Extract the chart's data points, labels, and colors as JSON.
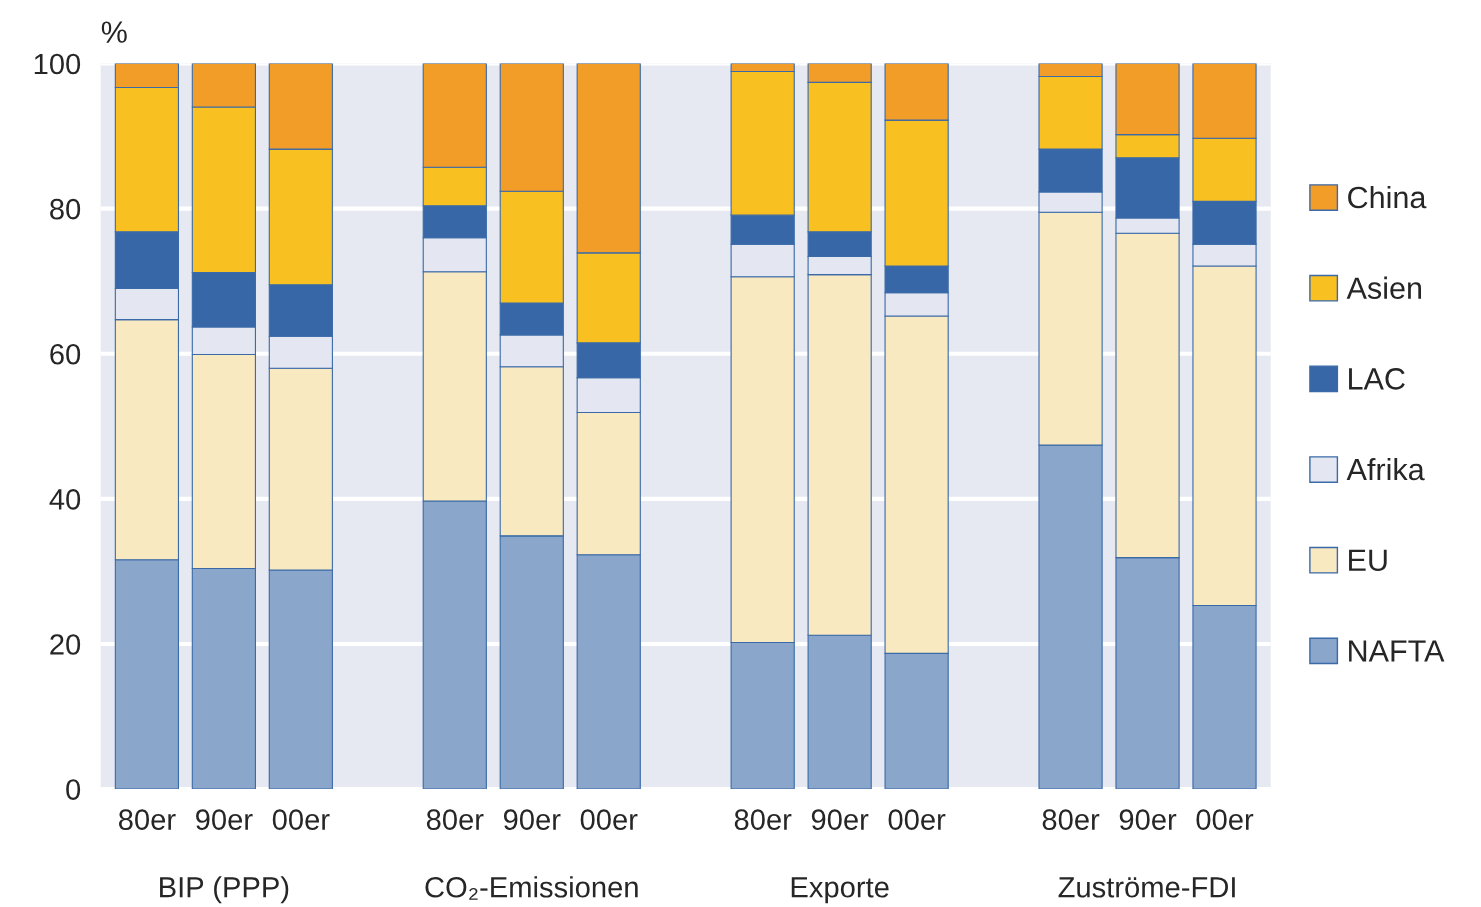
{
  "chart_data": {
    "type": "bar",
    "stacked": true,
    "ylabel": "%",
    "categories": [
      "80er",
      "90er",
      "00er",
      null,
      "80er",
      "90er",
      "00er",
      null,
      "80er",
      "90er",
      "00er",
      null,
      "80er",
      "90er",
      "00er"
    ],
    "series": [
      {
        "name": "NAFTA",
        "color": "#8aa6cb",
        "values": [
          31.6,
          30.4,
          30.2,
          null,
          39.7,
          34.9,
          32.3,
          null,
          20.2,
          21.2,
          18.7,
          null,
          47.4,
          31.9,
          25.3
        ]
      },
      {
        "name": "EU",
        "color": "#f8e9c0",
        "values": [
          33.1,
          29.5,
          27.8,
          null,
          31.6,
          23.3,
          19.6,
          null,
          50.4,
          49.7,
          46.5,
          null,
          32.1,
          44.7,
          46.8
        ]
      },
      {
        "name": "Afrika",
        "color": "#e4e7f1",
        "values": [
          4.3,
          3.8,
          4.4,
          null,
          4.7,
          4.4,
          4.8,
          null,
          4.5,
          2.5,
          3.2,
          null,
          2.8,
          2.1,
          3.0
        ]
      },
      {
        "name": "LAC",
        "color": "#3767a7",
        "values": [
          7.8,
          7.5,
          7.1,
          null,
          4.4,
          4.4,
          4.8,
          null,
          4.0,
          3.4,
          3.7,
          null,
          5.9,
          8.3,
          5.9
        ]
      },
      {
        "name": "Asien",
        "color": "#f9c021",
        "values": [
          19.9,
          22.8,
          18.7,
          null,
          5.3,
          15.4,
          12.4,
          null,
          19.8,
          20.6,
          20.1,
          null,
          10.0,
          3.2,
          8.7
        ]
      },
      {
        "name": "China",
        "color": "#f29d28",
        "values": [
          3.3,
          6.0,
          11.8,
          null,
          14.3,
          17.6,
          26.1,
          null,
          1.1,
          2.6,
          7.8,
          null,
          1.8,
          9.8,
          10.3
        ]
      }
    ],
    "ylim": [
      0,
      100
    ],
    "yticks": [
      0,
      20,
      40,
      60,
      80,
      100
    ],
    "grid": "y",
    "legend": "right",
    "annotations": [
      "BIP (PPP)",
      "CO₂-Emissionen",
      "Exporte",
      "Zuströme-FDI"
    ]
  }
}
